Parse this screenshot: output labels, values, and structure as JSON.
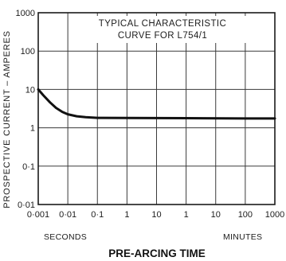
{
  "chart_data": {
    "type": "line",
    "title": "TYPICAL CHARACTERISTIC",
    "subtitle": "CURVE FOR L754/1",
    "ylabel": "PROSPECTIVE CURRENT – AMPERES",
    "xlabel": "PRE-ARCING TIME",
    "x_unit_labels": {
      "seconds": "SECONDS",
      "minutes": "MINUTES"
    },
    "x_scale": "log",
    "y_scale": "log",
    "grid": true,
    "xlim_seconds": [
      0.001,
      60000
    ],
    "ylim": [
      0.01,
      1000
    ],
    "x_ticks": [
      {
        "label": "0·001",
        "seconds": 0.001
      },
      {
        "label": "0·01",
        "seconds": 0.01
      },
      {
        "label": "0·1",
        "seconds": 0.1
      },
      {
        "label": "1",
        "seconds": 1
      },
      {
        "label": "10",
        "seconds": 10
      },
      {
        "label": "1",
        "seconds": 60
      },
      {
        "label": "10",
        "seconds": 600
      },
      {
        "label": "100",
        "seconds": 6000
      },
      {
        "label": "1000",
        "seconds": 60000
      }
    ],
    "y_ticks": [
      {
        "label": "1000",
        "value": 1000
      },
      {
        "label": "100",
        "value": 100
      },
      {
        "label": "10",
        "value": 10
      },
      {
        "label": "1",
        "value": 1
      },
      {
        "label": "0·1",
        "value": 0.1
      },
      {
        "label": "0·01",
        "value": 0.01
      }
    ],
    "series": [
      {
        "color": "#111111",
        "points": [
          [
            0.001,
            10
          ],
          [
            0.0015,
            7
          ],
          [
            0.0025,
            4.6
          ],
          [
            0.004,
            3.3
          ],
          [
            0.0065,
            2.6
          ],
          [
            0.01,
            2.25
          ],
          [
            0.02,
            2.0
          ],
          [
            0.04,
            1.9
          ],
          [
            0.1,
            1.82
          ],
          [
            1,
            1.8
          ],
          [
            60,
            1.78
          ],
          [
            6000,
            1.75
          ],
          [
            60000,
            1.75
          ]
        ]
      }
    ]
  }
}
